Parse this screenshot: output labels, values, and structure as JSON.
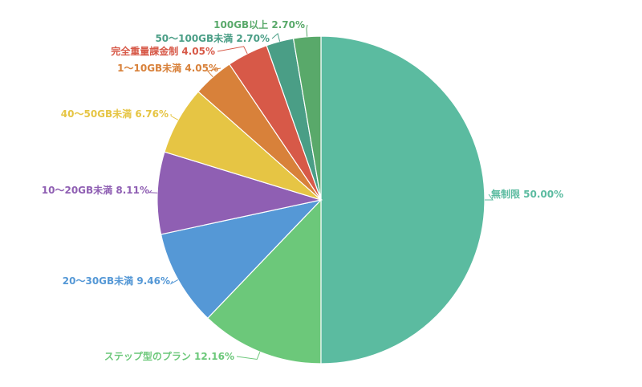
{
  "chart_data": {
    "type": "pie",
    "title": "",
    "start": "12 o'clock",
    "direction": "clockwise",
    "slices": [
      {
        "label": "無制限",
        "value": 50.0,
        "value_label": "50.00%",
        "color": "#5bbba0"
      },
      {
        "label": "ステップ型のプラン",
        "value": 12.16,
        "value_label": "12.16%",
        "color": "#6cc87a"
      },
      {
        "label": "20〜30GB未満",
        "value": 9.46,
        "value_label": "9.46%",
        "color": "#5598d6"
      },
      {
        "label": "10〜20GB未満",
        "value": 8.11,
        "value_label": "8.11%",
        "color": "#8f5fb3"
      },
      {
        "label": "40〜50GB未満",
        "value": 6.76,
        "value_label": "6.76%",
        "color": "#e6c544"
      },
      {
        "label": "1〜10GB未満",
        "value": 4.05,
        "value_label": "4.05%",
        "color": "#d8813a"
      },
      {
        "label": "完全重量課金制",
        "value": 4.05,
        "value_label": "4.05%",
        "color": "#d75948"
      },
      {
        "label": "50〜100GB未満",
        "value": 2.7,
        "value_label": "2.70%",
        "color": "#4a9e86"
      },
      {
        "label": "100GB以上",
        "value": 2.7,
        "value_label": "2.70%",
        "color": "#59a96a"
      }
    ]
  }
}
